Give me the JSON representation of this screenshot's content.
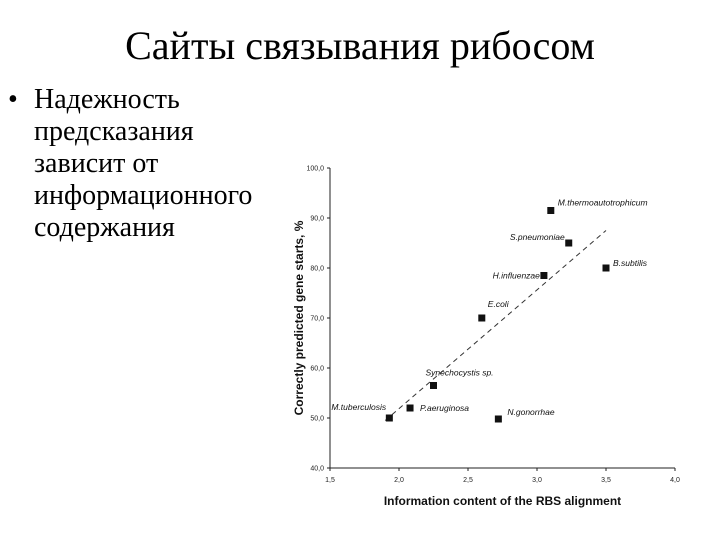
{
  "slide": {
    "title": "Сайты связывания рибосом",
    "bullet_symbol": "•",
    "bullet_lines": [
      "Надежность",
      "предсказания",
      "зависит от",
      "информационного",
      "содержания"
    ]
  },
  "chart_data": {
    "type": "scatter",
    "title": "",
    "xlabel": "Information content of the RBS alignment",
    "ylabel": "Correctly predicted gene starts, %",
    "xlim": [
      1.5,
      4.0
    ],
    "ylim": [
      40.0,
      100.0
    ],
    "x_ticks": [
      "1,5",
      "2,0",
      "2,5",
      "3,0",
      "3,5",
      "4,0"
    ],
    "y_ticks": [
      "40,0",
      "50,0",
      "60,0",
      "70,0",
      "80,0",
      "90,0",
      "100,0"
    ],
    "grid": false,
    "trendline": {
      "x": [
        1.9,
        3.5
      ],
      "y": [
        49.5,
        87.5
      ],
      "style": "dashed"
    },
    "points": [
      {
        "label": "M.thermoautotrophicum",
        "x": 3.1,
        "y": 91.5
      },
      {
        "label": "S.pneumoniae",
        "x": 3.23,
        "y": 85.0
      },
      {
        "label": "B.subtilis",
        "x": 3.5,
        "y": 80.0
      },
      {
        "label": "H.influenzae",
        "x": 3.05,
        "y": 78.5
      },
      {
        "label": "E.coli",
        "x": 2.6,
        "y": 70.0
      },
      {
        "label": "Synechocystis sp.",
        "x": 2.25,
        "y": 56.5
      },
      {
        "label": "M.tuberculosis",
        "x": 1.93,
        "y": 50.0
      },
      {
        "label": "P.aeruginosa",
        "x": 2.08,
        "y": 52.0
      },
      {
        "label": "N.gonorrhae",
        "x": 2.72,
        "y": 49.8
      }
    ]
  }
}
